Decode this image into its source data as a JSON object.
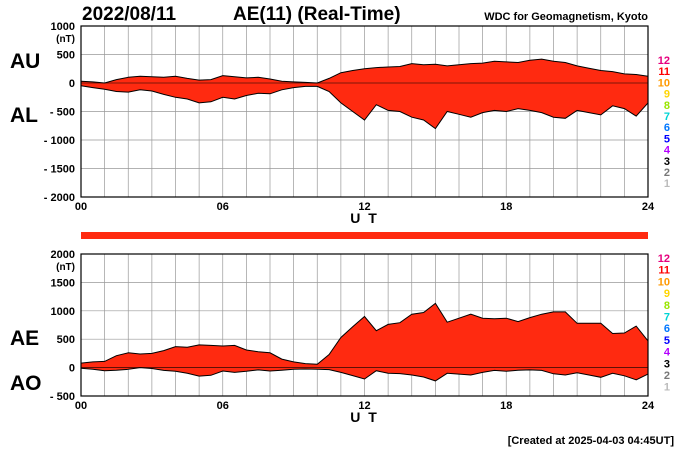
{
  "header": {
    "date": "2022/08/11",
    "index_title": "AE(11) (Real-Time)",
    "source": "WDC for Geomagnetism, Kyoto"
  },
  "footer": {
    "created": "[Created at 2025-04-03 04:45UT]"
  },
  "colors": {
    "fill": "#ff2a10",
    "outline": "#000000",
    "grid": "#999999",
    "bar": "#ff2a10"
  },
  "legend_hours": [
    {
      "label": "12",
      "color": "#e6007e"
    },
    {
      "label": "11",
      "color": "#ff0000"
    },
    {
      "label": "10",
      "color": "#ff9900"
    },
    {
      "label": "9",
      "color": "#ffd500"
    },
    {
      "label": "8",
      "color": "#99e600"
    },
    {
      "label": "7",
      "color": "#00d4d4"
    },
    {
      "label": "6",
      "color": "#0077ff"
    },
    {
      "label": "5",
      "color": "#0000ff"
    },
    {
      "label": "4",
      "color": "#b400ff"
    },
    {
      "label": "3",
      "color": "#000000"
    },
    {
      "label": "2",
      "color": "#777777"
    },
    {
      "label": "1",
      "color": "#bbbbbb"
    }
  ],
  "chart_data": [
    {
      "type": "area",
      "upper_label": "AU",
      "lower_label": "AL",
      "unit": "(nT)",
      "xlabel": "U T",
      "xlim": [
        0,
        24
      ],
      "ylim": [
        -2000,
        1000
      ],
      "yticks": [
        1000,
        500,
        0,
        -500,
        -1000,
        -1500,
        -2000
      ],
      "ytick_labels": [
        "1000",
        "500",
        "0",
        "- 500",
        "- 1000",
        "- 1500",
        "- 2000"
      ],
      "xtick_labels": [
        {
          "x": 0,
          "label": "00"
        },
        {
          "x": 6,
          "label": "06"
        },
        {
          "x": 12,
          "label": "12"
        },
        {
          "x": 18,
          "label": "18"
        },
        {
          "x": 24,
          "label": "24"
        }
      ],
      "x": [
        0,
        0.5,
        1,
        1.5,
        2,
        2.5,
        3,
        3.5,
        4,
        4.5,
        5,
        5.5,
        6,
        6.5,
        7,
        7.5,
        8,
        8.5,
        9,
        9.5,
        10,
        10.5,
        11,
        11.5,
        12,
        12.5,
        13,
        13.5,
        14,
        14.5,
        15,
        15.5,
        16,
        16.5,
        17,
        17.5,
        18,
        18.5,
        19,
        19.5,
        20,
        20.5,
        21,
        21.5,
        22,
        22.5,
        23,
        23.5,
        24
      ],
      "series": [
        {
          "name": "AU",
          "values": [
            30,
            20,
            0,
            60,
            100,
            120,
            110,
            100,
            120,
            80,
            50,
            60,
            130,
            110,
            90,
            100,
            70,
            30,
            20,
            10,
            0,
            80,
            180,
            220,
            250,
            270,
            280,
            290,
            340,
            320,
            330,
            300,
            320,
            340,
            350,
            380,
            370,
            360,
            400,
            420,
            380,
            360,
            300,
            260,
            220,
            200,
            160,
            150,
            120
          ]
        },
        {
          "name": "AL",
          "values": [
            -50,
            -80,
            -110,
            -150,
            -160,
            -120,
            -140,
            -200,
            -250,
            -280,
            -350,
            -330,
            -250,
            -280,
            -220,
            -180,
            -190,
            -120,
            -80,
            -60,
            -60,
            -150,
            -350,
            -500,
            -650,
            -380,
            -480,
            -500,
            -600,
            -650,
            -800,
            -500,
            -550,
            -600,
            -520,
            -480,
            -500,
            -450,
            -480,
            -520,
            -600,
            -620,
            -480,
            -520,
            -560,
            -400,
            -450,
            -580,
            -350
          ]
        }
      ]
    },
    {
      "type": "area",
      "upper_label": "AE",
      "lower_label": "AO",
      "unit": "(nT)",
      "xlabel": "U T",
      "xlim": [
        0,
        24
      ],
      "ylim": [
        -500,
        2000
      ],
      "yticks": [
        2000,
        1500,
        1000,
        500,
        0,
        -500
      ],
      "ytick_labels": [
        "2000",
        "1500",
        "1000",
        "500",
        "0",
        "- 500"
      ],
      "xtick_labels": [
        {
          "x": 0,
          "label": "00"
        },
        {
          "x": 6,
          "label": "06"
        },
        {
          "x": 12,
          "label": "12"
        },
        {
          "x": 18,
          "label": "18"
        },
        {
          "x": 24,
          "label": "24"
        }
      ],
      "x": [
        0,
        0.5,
        1,
        1.5,
        2,
        2.5,
        3,
        3.5,
        4,
        4.5,
        5,
        5.5,
        6,
        6.5,
        7,
        7.5,
        8,
        8.5,
        9,
        9.5,
        10,
        10.5,
        11,
        11.5,
        12,
        12.5,
        13,
        13.5,
        14,
        14.5,
        15,
        15.5,
        16,
        16.5,
        17,
        17.5,
        18,
        18.5,
        19,
        19.5,
        20,
        20.5,
        21,
        21.5,
        22,
        22.5,
        23,
        23.5,
        24
      ],
      "series": [
        {
          "name": "AE",
          "values": [
            80,
            100,
            110,
            210,
            260,
            240,
            250,
            300,
            370,
            360,
            400,
            390,
            380,
            390,
            310,
            280,
            260,
            150,
            100,
            70,
            60,
            230,
            530,
            720,
            900,
            650,
            760,
            790,
            940,
            970,
            1130,
            800,
            870,
            940,
            870,
            860,
            870,
            810,
            880,
            940,
            980,
            980,
            780,
            780,
            780,
            600,
            610,
            730,
            470
          ]
        },
        {
          "name": "AO",
          "values": [
            -10,
            -30,
            -55,
            -45,
            -30,
            0,
            -15,
            -50,
            -65,
            -100,
            -150,
            -135,
            -60,
            -85,
            -65,
            -40,
            -60,
            -45,
            -30,
            -25,
            -30,
            -35,
            -85,
            -140,
            -200,
            -55,
            -100,
            -105,
            -130,
            -165,
            -235,
            -100,
            -115,
            -130,
            -85,
            -50,
            -65,
            -45,
            -40,
            -50,
            -110,
            -130,
            -90,
            -130,
            -170,
            -100,
            -145,
            -215,
            -115
          ]
        }
      ]
    }
  ]
}
